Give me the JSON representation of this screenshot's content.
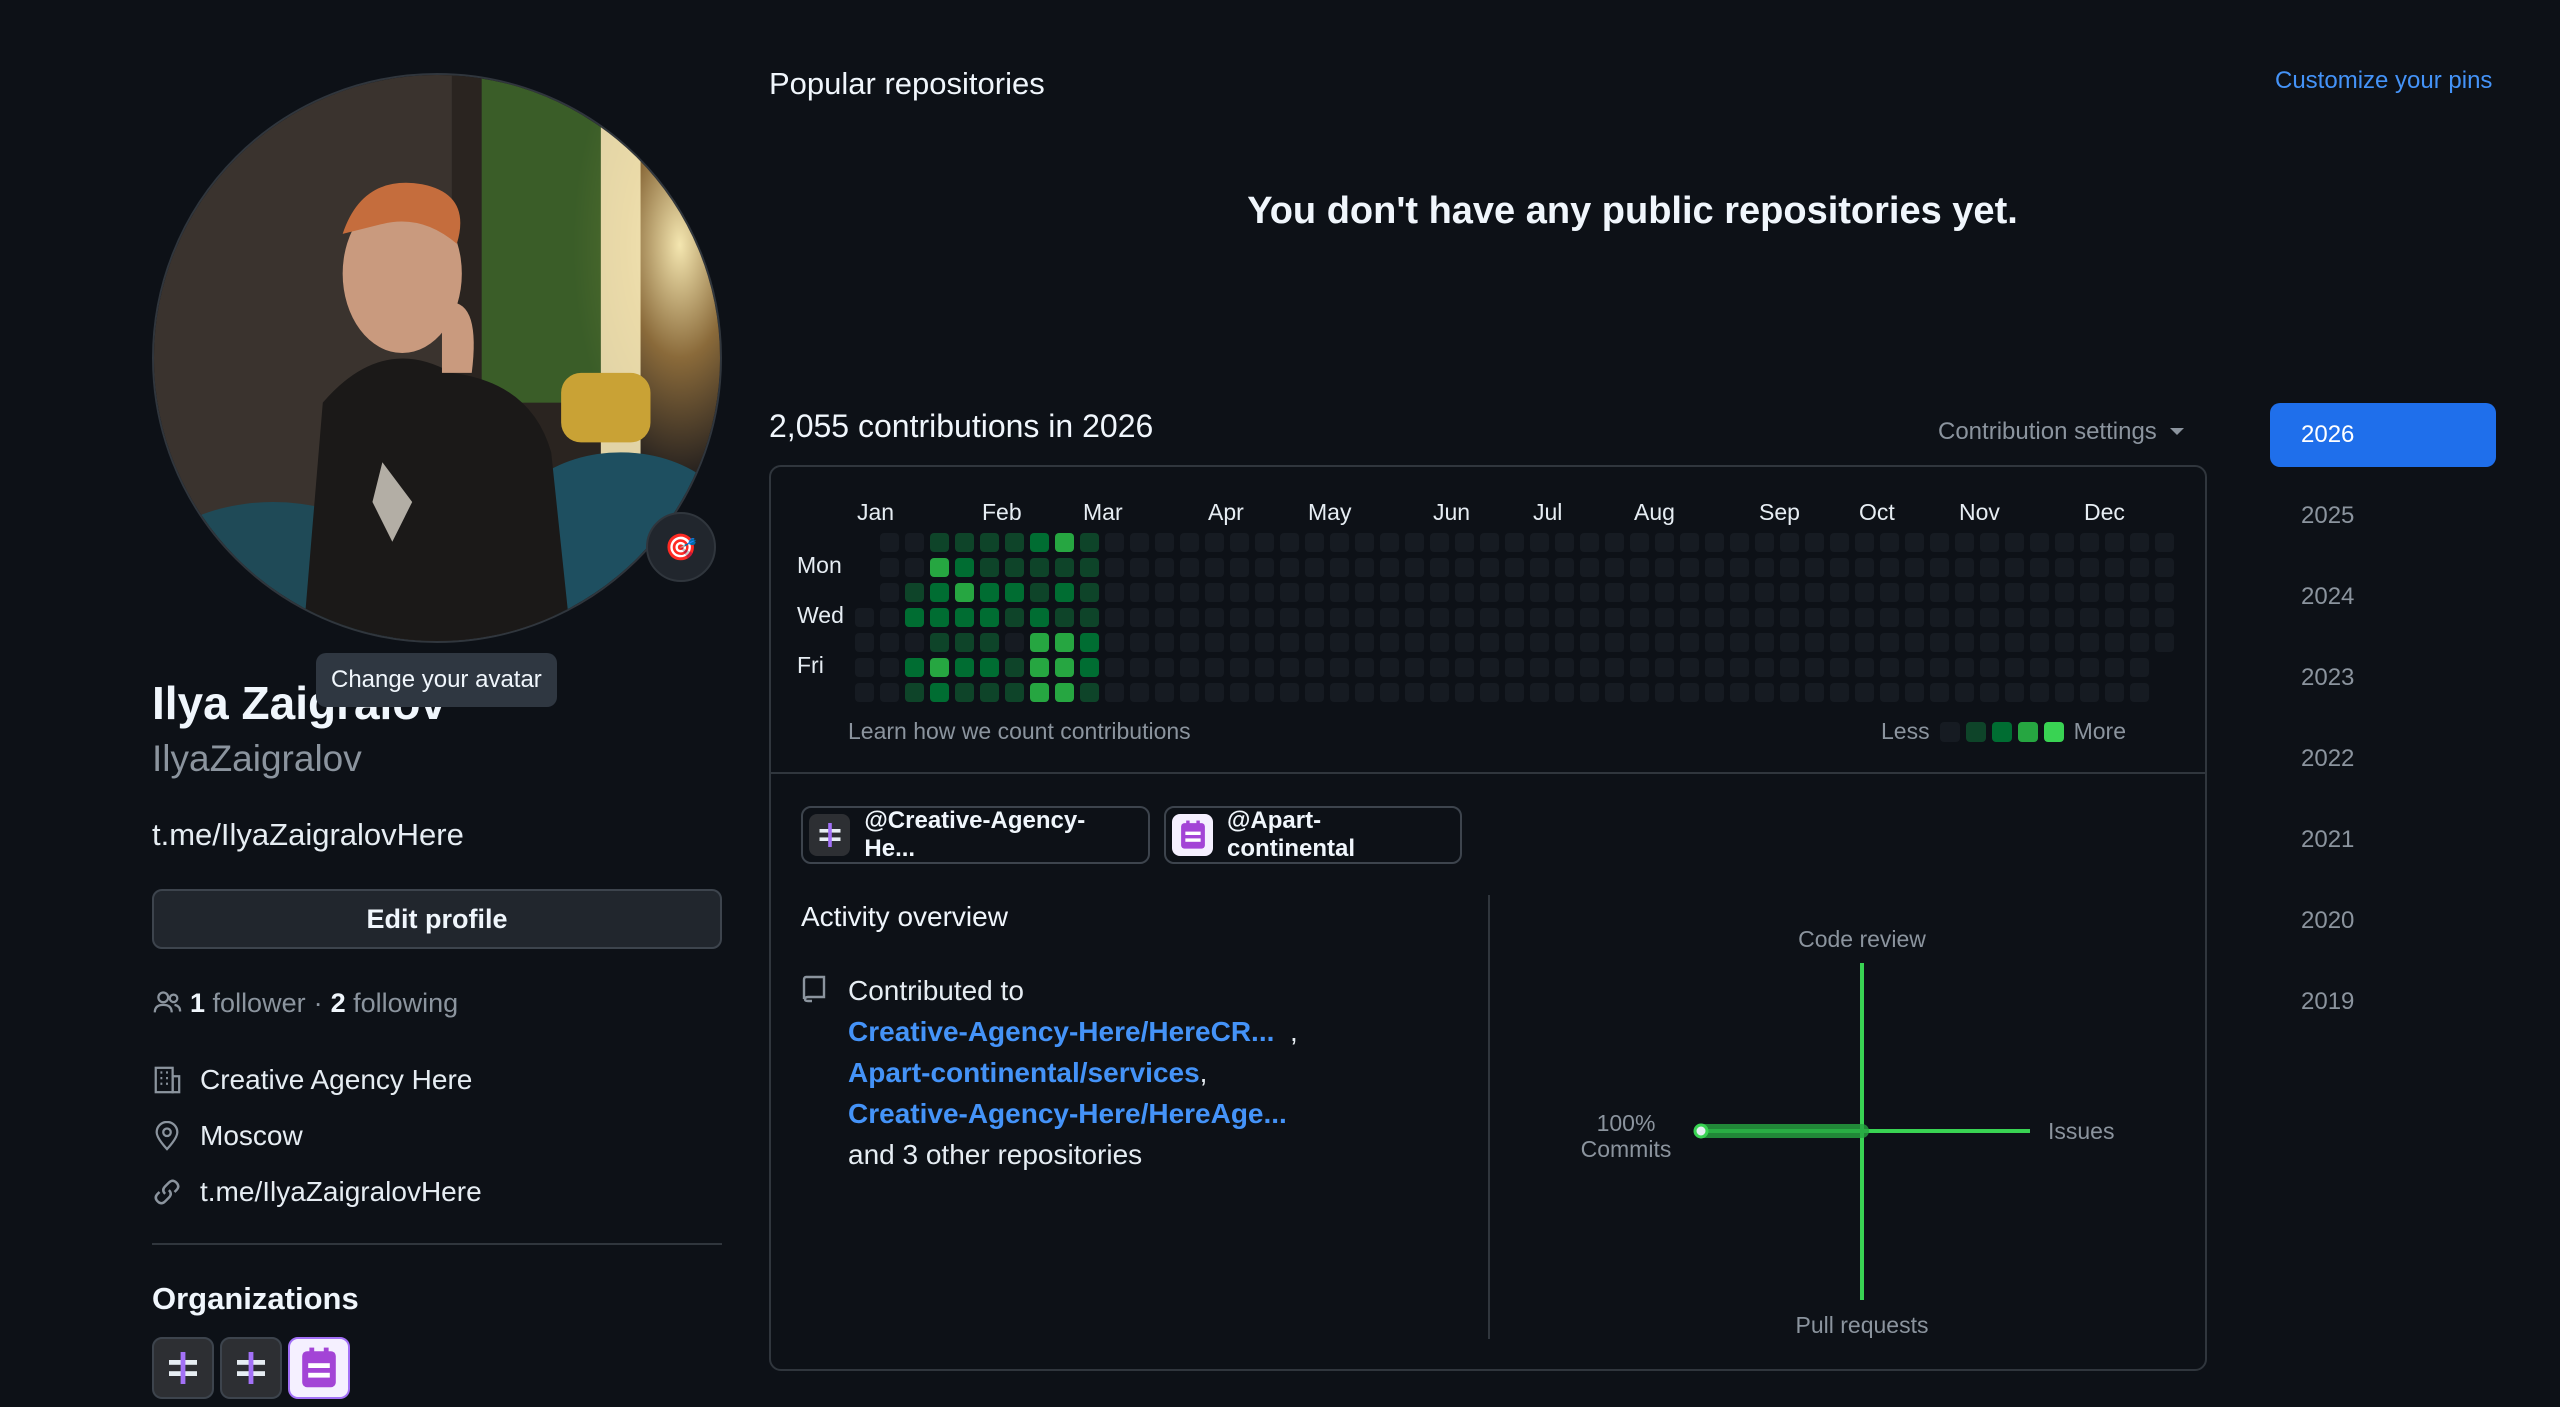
{
  "profile": {
    "tooltip": "Change your avatar",
    "full_name": "Ilya Zaigralov",
    "username": "IlyaZaigralov",
    "bio": "t.me/IlyaZaigralovHere",
    "edit_profile_label": "Edit profile",
    "followers_count": "1",
    "followers_label": "follower",
    "separator": "·",
    "following_count": "2",
    "following_label": "following",
    "company": "Creative Agency Here",
    "location": "Moscow",
    "website": "t.me/IlyaZaigralovHere",
    "organizations_title": "Organizations",
    "organizations": [
      "creative-agency-org-1",
      "creative-agency-org-2",
      "apart-continental-org"
    ]
  },
  "repos": {
    "title": "Popular repositories",
    "customize_label": "Customize your pins",
    "empty_message": "You don't have any public repositories yet."
  },
  "contributions": {
    "heading": "2,055 contributions in 2026",
    "settings_label": "Contribution settings",
    "months": [
      "Jan",
      "Feb",
      "Mar",
      "Apr",
      "May",
      "Jun",
      "Jul",
      "Aug",
      "Sep",
      "Oct",
      "Nov",
      "Dec"
    ],
    "days": [
      "Mon",
      "Wed",
      "Fri"
    ],
    "learn_label": "Learn how we count contributions",
    "legend_less": "Less",
    "legend_more": "More",
    "colors": [
      "#161b22",
      "#0e4429",
      "#006d32",
      "#26a641",
      "#39d353"
    ]
  },
  "orgs_filter": {
    "chip1": "@Creative-Agency-He...",
    "chip2": "@Apart-continental"
  },
  "activity": {
    "title": "Activity overview",
    "contributed_to": "Contributed to",
    "repo1": "Creative-Agency-Here/HereCR...",
    "repo2": "Apart-continental/services",
    "repo3": "Creative-Agency-Here/HereAge...",
    "others": "and 3 other repositories",
    "axis_top": "Code review",
    "axis_bottom": "Pull requests",
    "axis_right": "Issues",
    "commits_pct": "100%",
    "commits_label": "Commits"
  },
  "years": [
    "2026",
    "2025",
    "2024",
    "2023",
    "2022",
    "2021",
    "2020",
    "2019"
  ],
  "active_year": "2026",
  "accent_color": "#1f6feb",
  "link_color": "#4493f8"
}
